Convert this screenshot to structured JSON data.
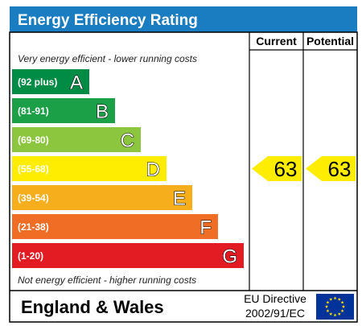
{
  "header": {
    "title": "Energy Efficiency Rating",
    "col_current": "Current",
    "col_potential": "Potential"
  },
  "notes": {
    "top": "Very energy efficient - lower running costs",
    "bottom": "Not energy efficient - higher running costs"
  },
  "footer": {
    "region": "England & Wales",
    "directive_line1": "EU Directive",
    "directive_line2": "2002/91/EC",
    "flag_icon": "eu-flag-icon"
  },
  "colors": {
    "header_bg": "#1a7dc2",
    "border": "#000000",
    "score_arrow": "#ffed00",
    "flag_blue": "#003399",
    "flag_star": "#ffdd00"
  },
  "chart_data": {
    "type": "bar",
    "categories": [
      "A",
      "B",
      "C",
      "D",
      "E",
      "F",
      "G"
    ],
    "ranges": [
      "(92 plus)",
      "(81-91)",
      "(69-80)",
      "(55-68)",
      "(39-54)",
      "(21-38)",
      "(1-20)"
    ],
    "colors": [
      "#008c44",
      "#1ba048",
      "#8cc63f",
      "#ffed00",
      "#f7ae1d",
      "#ef6d25",
      "#e31c24"
    ],
    "current": {
      "value": 63,
      "band": "D"
    },
    "potential": {
      "value": 63,
      "band": "D"
    }
  }
}
